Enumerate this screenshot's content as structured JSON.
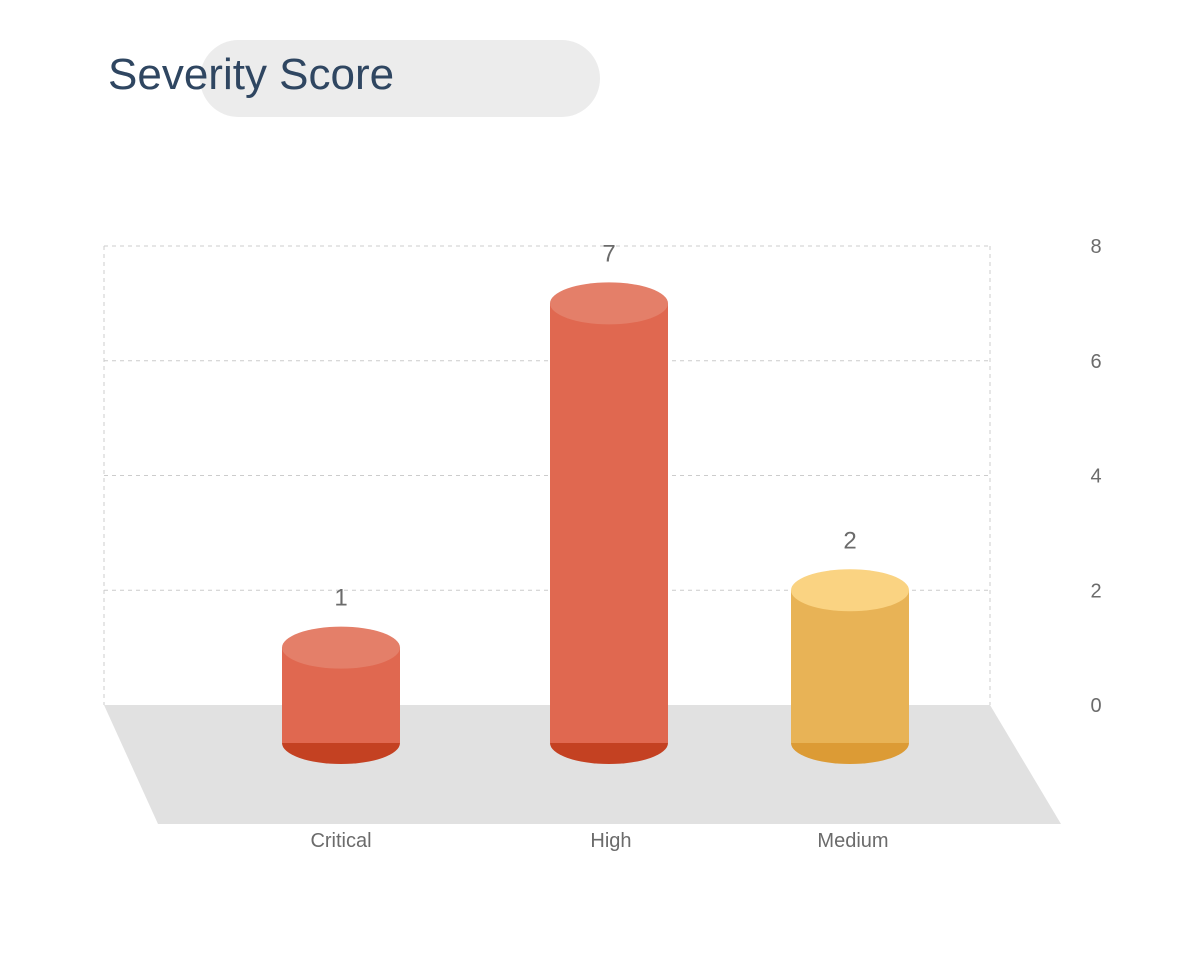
{
  "chart_data": {
    "type": "bar",
    "title": "Severity Score",
    "categories": [
      "Critical",
      "High",
      "Medium"
    ],
    "values": [
      1,
      7,
      2
    ],
    "value_labels": [
      "1",
      "7",
      "2"
    ],
    "y_ticks": [
      "0",
      "2",
      "4",
      "6",
      "8"
    ],
    "ylim": [
      0,
      8
    ],
    "grid": true,
    "style": "3d-cylinder",
    "colors": {
      "Critical": {
        "side": "#e06850",
        "top": "#e47f69",
        "bottom": "#c44122"
      },
      "High": {
        "side": "#e06850",
        "top": "#e47f69",
        "bottom": "#c44122"
      },
      "Medium": {
        "side": "#e8b356",
        "top": "#fad382",
        "bottom": "#dc9b35"
      }
    },
    "floor_color": "#e1e1e1",
    "grid_color": "#cccccc"
  }
}
